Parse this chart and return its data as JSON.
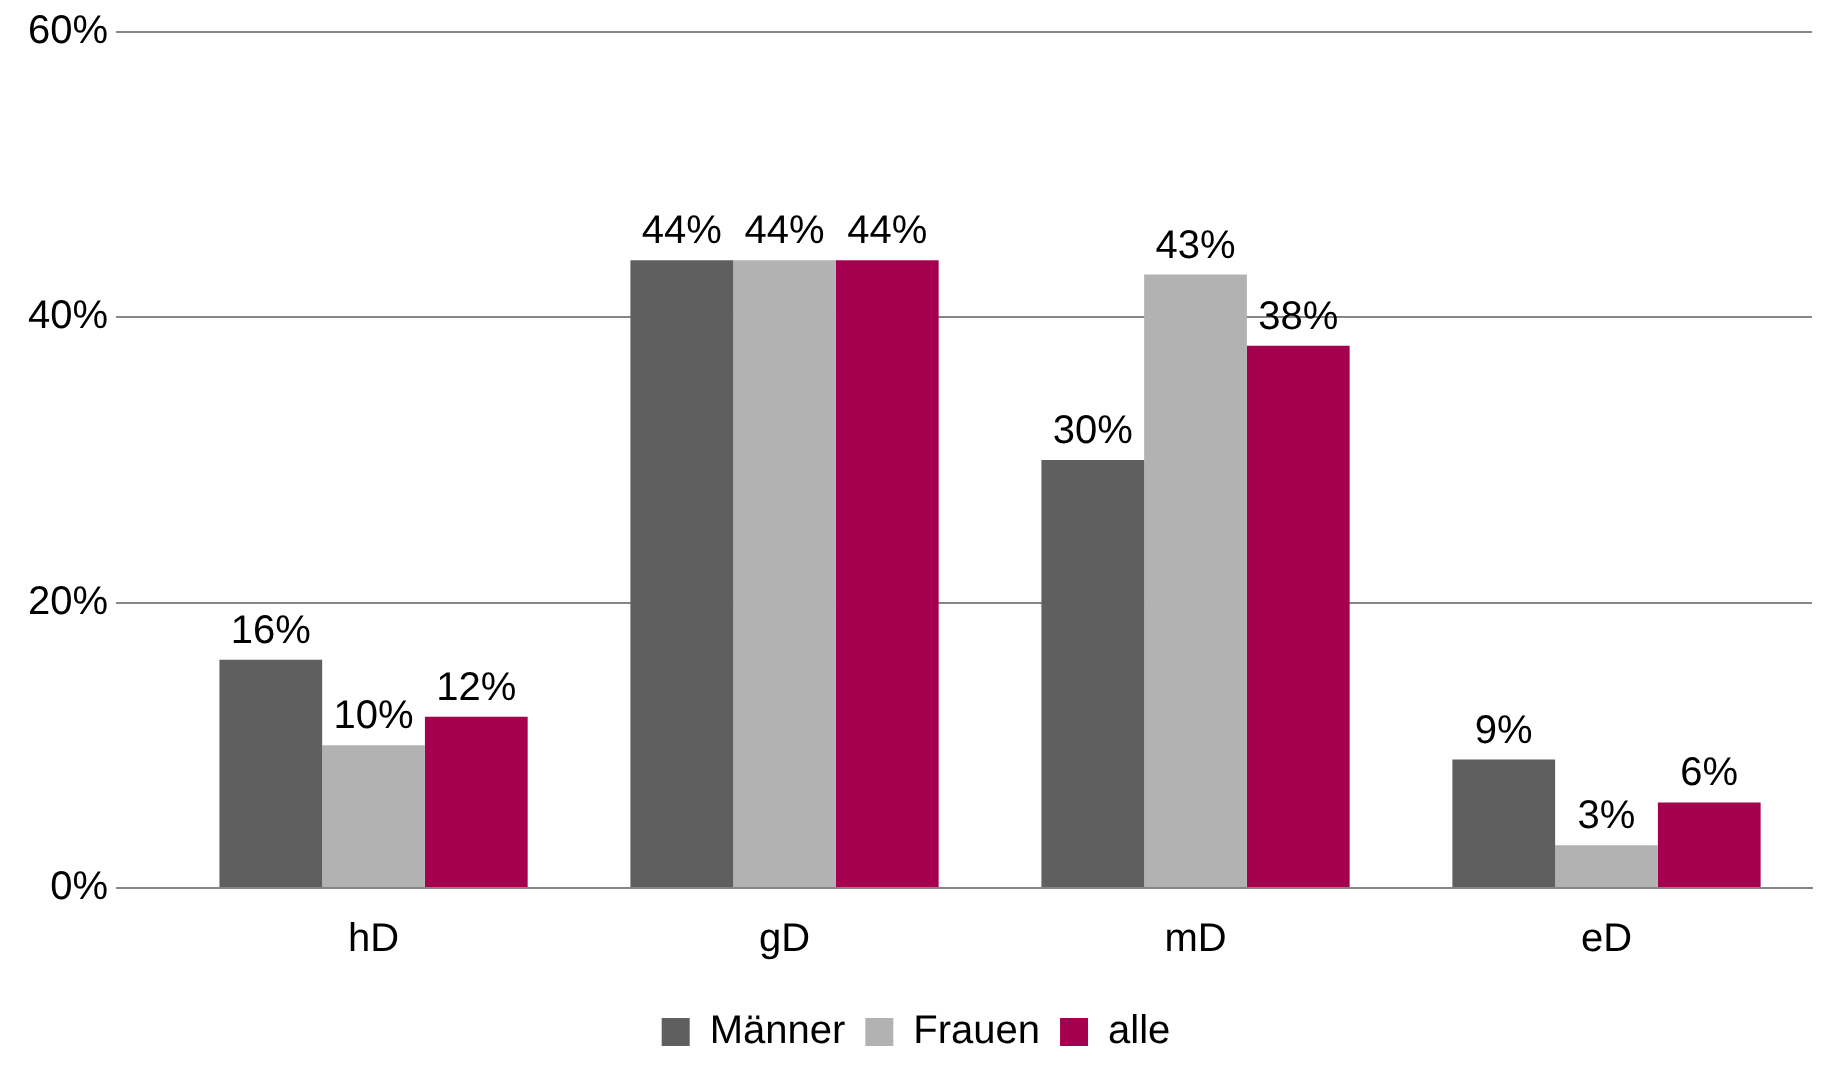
{
  "chart_data": {
    "type": "bar",
    "categories": [
      "hD",
      "gD",
      "mD",
      "eD"
    ],
    "series": [
      {
        "name": "Männer",
        "color": "#5f5f5f",
        "values": [
          16,
          44,
          30,
          9
        ],
        "value_labels": [
          "16%",
          "44%",
          "30%",
          "9%"
        ]
      },
      {
        "name": "Frauen",
        "color": "#b2b2b2",
        "values": [
          10,
          44,
          43,
          3
        ],
        "value_labels": [
          "10%",
          "44%",
          "43%",
          "3%"
        ]
      },
      {
        "name": "alle",
        "color": "#a50050",
        "values": [
          12,
          44,
          38,
          6
        ],
        "value_labels": [
          "12%",
          "44%",
          "38%",
          "6%"
        ]
      }
    ],
    "ylim": [
      0,
      60
    ],
    "yticks": [
      {
        "value": 0,
        "label": "0%"
      },
      {
        "value": 20,
        "label": "20%"
      },
      {
        "value": 40,
        "label": "40%"
      },
      {
        "value": 60,
        "label": "60%"
      }
    ],
    "grid": "y",
    "legend": "bottom"
  }
}
